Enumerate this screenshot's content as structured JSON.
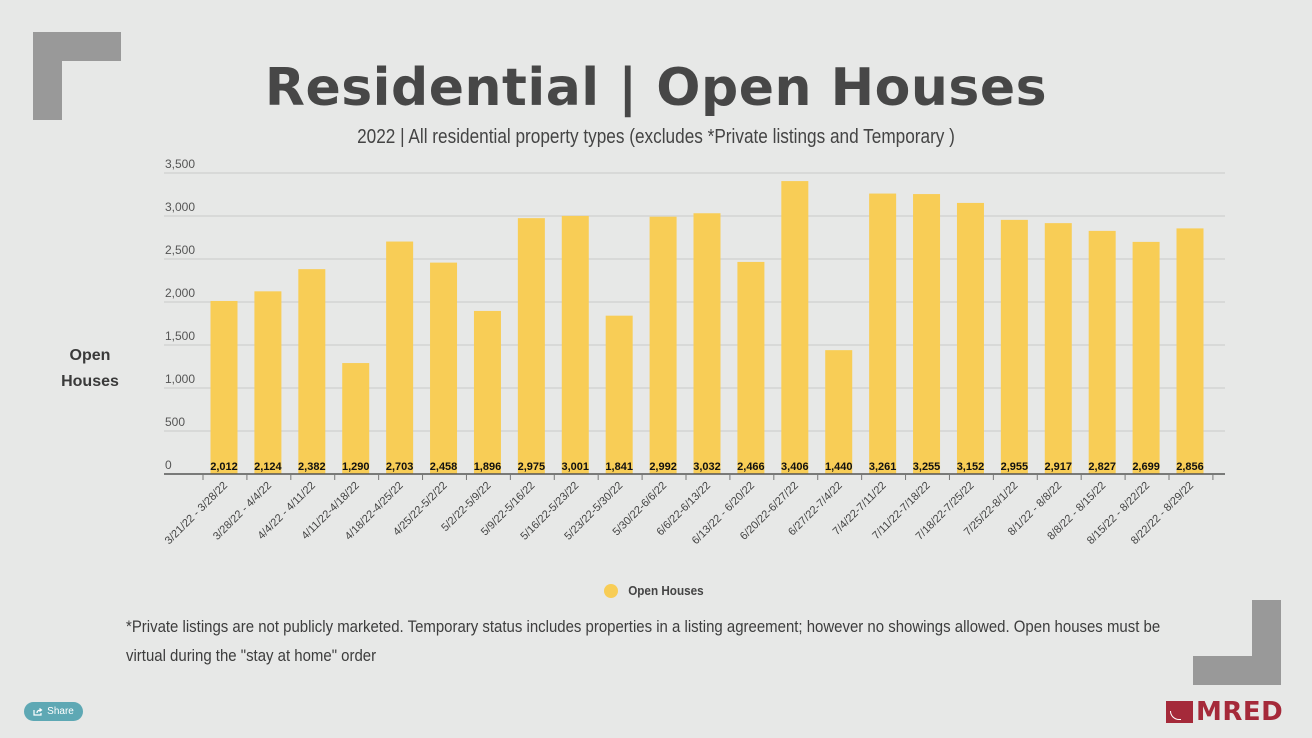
{
  "header": {
    "title": "Residential | Open Houses",
    "subtitle": "2022 | All residential property types (excludes *Private listings and Temporary )"
  },
  "chart_data": {
    "type": "bar",
    "title": "Residential | Open Houses",
    "subtitle": "2022 | All residential property types (excludes *Private listings and Temporary )",
    "xlabel": "",
    "ylabel": "Open Houses",
    "ylim": [
      0,
      3500
    ],
    "yticks": [
      0,
      500,
      1000,
      1500,
      2000,
      2500,
      3000,
      3500
    ],
    "ytick_labels": [
      "0",
      "500",
      "1,000",
      "1,500",
      "2,000",
      "2,500",
      "3,000",
      "3,500"
    ],
    "grid": true,
    "legend": {
      "position": "bottom",
      "entries": [
        "Open Houses"
      ]
    },
    "categories": [
      "3/21/22 - 3/28/22",
      "3/28/22 - 4/4/22",
      "4/4/22 - 4/11/22",
      "4/11/22-4/18/22",
      "4/18/22-4/25/22",
      "4/25/22-5/2/22",
      "5/2/22-5/9/22",
      "5/9/22-5/16/22",
      "5/16/22-5/23/22",
      "5/23/22-5/30/22",
      "5/30/22-6/6/22",
      "6/6/22-6/13/22",
      "6/13/22 - 6/20/22",
      "6/20/22-6/27/22",
      "6/27/22-7/4/22",
      "7/4/22-7/11/22",
      "7/11/22-7/18/22",
      "7/18/22-7/25/22",
      "7/25/22-8/1/22",
      "8/1/22 - 8/8/22",
      "8/8/22 - 8/15/22",
      "8/15/22 - 8/22/22",
      "8/22/22 - 8/29/22"
    ],
    "series": [
      {
        "name": "Open Houses",
        "color": "#f8cd56",
        "values": [
          2012,
          2124,
          2382,
          1290,
          2703,
          2458,
          1896,
          2975,
          3001,
          1841,
          2992,
          3032,
          2466,
          3406,
          1440,
          3261,
          3255,
          3152,
          2955,
          2917,
          2827,
          2699,
          2856
        ],
        "data_labels": [
          "2,012",
          "2,124",
          "2,382",
          "1,290",
          "2,703",
          "2,458",
          "1,896",
          "2,975",
          "3,001",
          "1,841",
          "2,992",
          "3,032",
          "2,466",
          "3,406",
          "1,440",
          "3,261",
          "3,255",
          "3,152",
          "2,955",
          "2,917",
          "2,827",
          "2,699",
          "2,856"
        ]
      }
    ]
  },
  "footnote": "*Private listings are not publicly marketed. Temporary status includes properties in a listing agreement; however no showings allowed. Open houses must be virtual during the \"stay at home\" order",
  "share_button": {
    "label": "Share",
    "icon": "share-icon"
  },
  "logo": {
    "text": "MRED",
    "color": "#a52a3a"
  },
  "colors": {
    "background": "#e7e8e7",
    "bar": "#f8cd56",
    "accent_corners": "#999999",
    "share": "#5ea8b4"
  }
}
